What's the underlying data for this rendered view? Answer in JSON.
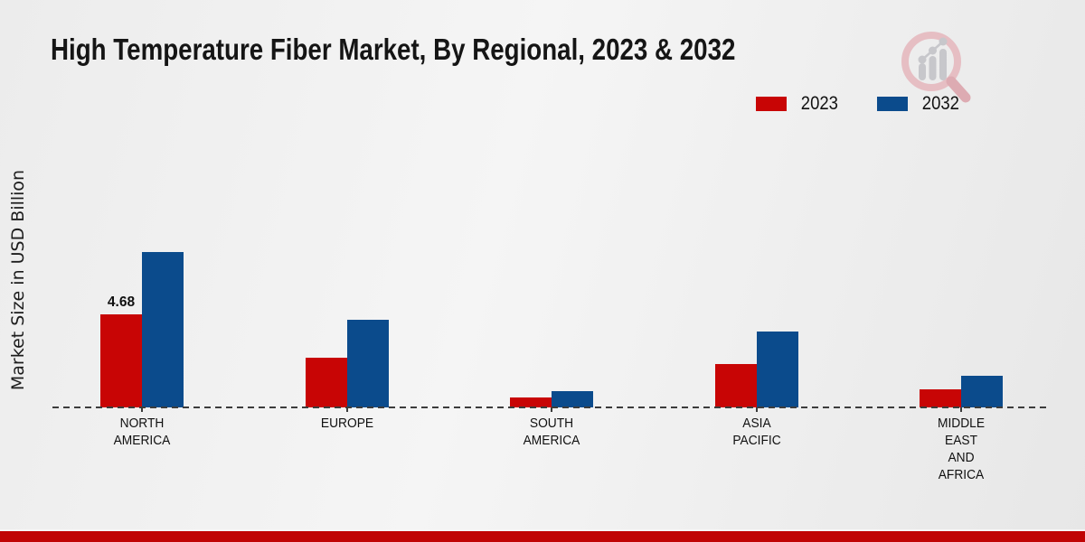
{
  "page": {
    "title": "High Temperature Fiber Market, By Regional, 2023 & 2032",
    "ylabel": "Market Size in USD Billion",
    "logo_icon": "magnifier-bar-chart-logo"
  },
  "colors": {
    "series_2023": "#c80505",
    "series_2032": "#0b4b8c",
    "baseline": "#3c3c3c",
    "footer_band": "#c00404",
    "text": "#151515",
    "logo_pink": "#e6bec3",
    "logo_gray": "#c7c7cb"
  },
  "legend": {
    "items": [
      {
        "label": "2023",
        "color": "#c80505"
      },
      {
        "label": "2032",
        "color": "#0b4b8c"
      }
    ]
  },
  "chart_data": {
    "type": "bar",
    "title": "High Temperature Fiber Market, By Regional, 2023 & 2032",
    "xlabel": "",
    "ylabel": "Market Size in USD Billion",
    "categories": [
      "NORTH\nAMERICA",
      "EUROPE",
      "SOUTH\nAMERICA",
      "ASIA\nPACIFIC",
      "MIDDLE\nEAST\nAND\nAFRICA"
    ],
    "series": [
      {
        "name": "2023",
        "color": "#c80505",
        "values": [
          4.68,
          2.5,
          0.5,
          2.2,
          0.9
        ],
        "value_labels": [
          "4.68",
          "",
          "",
          "",
          ""
        ]
      },
      {
        "name": "2032",
        "color": "#0b4b8c",
        "values": [
          7.8,
          4.4,
          0.8,
          3.8,
          1.6
        ],
        "value_labels": [
          "",
          "",
          "",
          "",
          ""
        ]
      }
    ],
    "ylim": [
      0,
      8
    ],
    "grid": false,
    "legend_position": "top-right",
    "baseline_style": "dashed",
    "annotations": [
      "Only the North America 2023 bar carries a data label: 4.68"
    ]
  }
}
